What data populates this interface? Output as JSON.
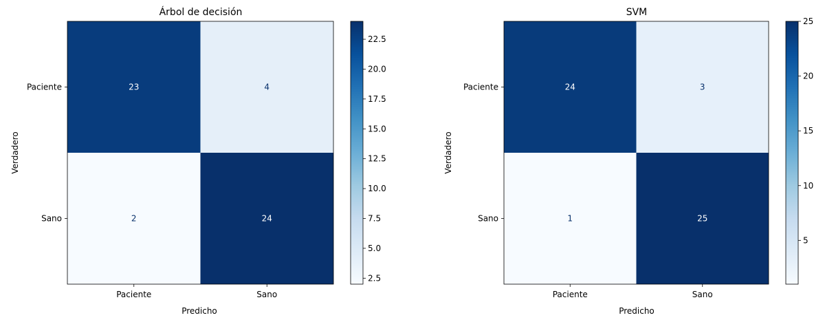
{
  "chart_data": [
    {
      "type": "heatmap",
      "title": "Árbol de decisión",
      "xlabel": "Predicho",
      "ylabel": "Verdadero",
      "x_categories": [
        "Paciente",
        "Sano"
      ],
      "y_categories": [
        "Paciente",
        "Sano"
      ],
      "values": [
        [
          23,
          4
        ],
        [
          2,
          24
        ]
      ],
      "colormap": "Blues",
      "vmin": 2,
      "vmax": 24,
      "colorbar_ticks": [
        "2.5",
        "5.0",
        "7.5",
        "10.0",
        "12.5",
        "15.0",
        "17.5",
        "20.0",
        "22.5"
      ],
      "grid": false
    },
    {
      "type": "heatmap",
      "title": "SVM",
      "xlabel": "Predicho",
      "ylabel": "Verdadero",
      "x_categories": [
        "Paciente",
        "Sano"
      ],
      "y_categories": [
        "Paciente",
        "Sano"
      ],
      "values": [
        [
          24,
          3
        ],
        [
          1,
          25
        ]
      ],
      "colormap": "Blues",
      "vmin": 1,
      "vmax": 25,
      "colorbar_ticks": [
        "5",
        "10",
        "15",
        "20",
        "25"
      ],
      "grid": false
    }
  ],
  "colors": {
    "blues": [
      "#f7fbff",
      "#deebf7",
      "#c6dbef",
      "#9ecae1",
      "#6baed6",
      "#4292c6",
      "#2171b5",
      "#08519c",
      "#08306b"
    ],
    "text_on_dark": "#ffffff",
    "text_on_light": "#08306b",
    "axis": "#000000"
  }
}
